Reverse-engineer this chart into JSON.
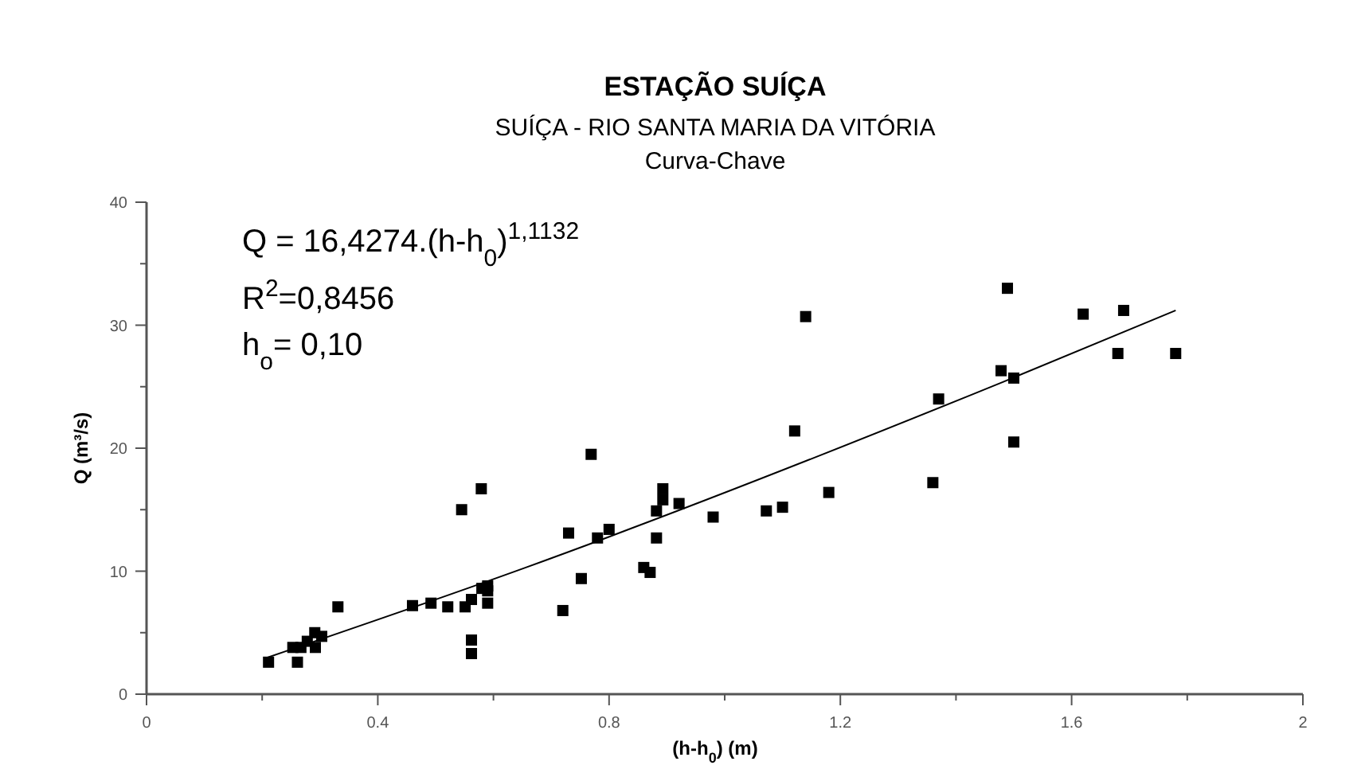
{
  "chart_data": {
    "type": "scatter",
    "title": "ESTAÇÃO SUÍÇA",
    "subtitle": "SUÍÇA - RIO SANTA MARIA DA VITÓRIA\nCurva-Chave",
    "xlabel": "(h-h$_{0}$) (m)",
    "ylabel": "Q (m³/s)",
    "annotations": [
      "Q = 16,4274.(h-h$_{0}$)$^{1,1132}$",
      "R$^{2}$=0,8456",
      "h$_{o}$= 0,10"
    ],
    "xlim": [
      0,
      2
    ],
    "ylim": [
      0,
      40
    ],
    "xticks": [
      0,
      {
        "value": 0.2,
        "label": null
      },
      0.4,
      {
        "value": 0.6,
        "label": null
      },
      0.8,
      {
        "value": 1.0,
        "label": null
      },
      1.2,
      {
        "value": 1.4,
        "label": null
      },
      1.6,
      {
        "value": 1.8,
        "label": null
      },
      2
    ],
    "yticks": [
      0,
      {
        "value": 5,
        "label": null
      },
      10,
      {
        "value": 15,
        "label": null
      },
      20,
      {
        "value": 25,
        "label": null
      },
      30,
      {
        "value": 35,
        "label": null
      },
      40
    ],
    "grid": false,
    "series": [
      {
        "marker": "square",
        "color": "#000000",
        "x": [
          0.211,
          0.261,
          0.253,
          0.267,
          0.278,
          0.292,
          0.291,
          0.303,
          0.331,
          0.46,
          0.492,
          0.521,
          0.551,
          0.562,
          0.562,
          0.562,
          0.545,
          0.579,
          0.58,
          0.59,
          0.59,
          0.59,
          0.72,
          0.73,
          0.769,
          0.752,
          0.78,
          0.8,
          0.86,
          0.871,
          0.882,
          0.882,
          0.893,
          0.893,
          0.921,
          0.98,
          1.072,
          1.1,
          1.121,
          1.14,
          1.18,
          1.36,
          1.37,
          1.478,
          1.489,
          1.5,
          1.5,
          1.62,
          1.68,
          1.69,
          1.78
        ],
        "values": [
          2.6,
          2.6,
          3.8,
          3.8,
          4.3,
          3.8,
          5.0,
          4.7,
          7.1,
          7.2,
          7.4,
          7.1,
          7.1,
          7.7,
          4.4,
          3.3,
          15.0,
          16.7,
          8.6,
          8.8,
          8.4,
          7.4,
          6.8,
          13.1,
          19.5,
          9.4,
          12.7,
          13.4,
          10.3,
          9.9,
          12.7,
          14.9,
          15.8,
          16.7,
          15.5,
          14.4,
          14.9,
          15.2,
          21.4,
          30.7,
          16.4,
          17.2,
          24.0,
          26.3,
          33.0,
          25.7,
          20.5,
          30.9,
          27.7,
          31.2,
          27.7
        ]
      },
      {
        "type": "line",
        "marker": "none",
        "line_style": "solid",
        "color": "#000000",
        "x": [
          0.204,
          0.656,
          1.482,
          1.78
        ],
        "values": [
          2.9,
          10.3,
          25.4,
          31.2
        ]
      }
    ]
  }
}
